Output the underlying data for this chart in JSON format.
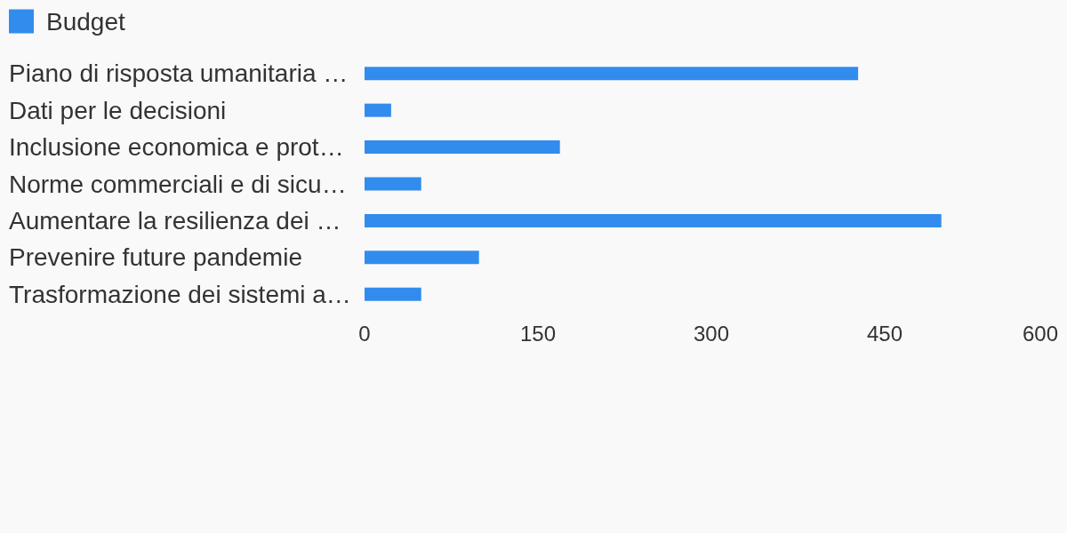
{
  "chart_data": {
    "type": "bar",
    "orientation": "horizontal",
    "categories": [
      "Piano di risposta umanitaria …",
      "Dati per le decisioni",
      "Inclusione economica e prot…",
      "Norme commerciali e di sicu…",
      "Aumentare la resilienza dei …",
      "Prevenire future pandemie",
      "Trasformazione dei sistemi a…"
    ],
    "series": [
      {
        "name": "Budget",
        "color": "#328ced",
        "values": [
          427,
          23,
          169,
          49,
          499,
          99,
          49
        ]
      }
    ],
    "xlim": [
      0,
      600
    ],
    "xticks": [
      0,
      150,
      300,
      450,
      600
    ],
    "legend": "top left"
  }
}
